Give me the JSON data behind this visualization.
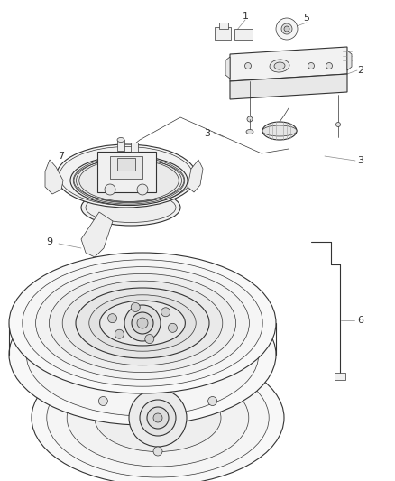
{
  "bg_color": "#ffffff",
  "line_color": "#333333",
  "label_color": "#333333",
  "figsize": [
    4.38,
    5.33
  ],
  "dpi": 100,
  "lw_main": 0.8,
  "lw_thin": 0.5,
  "lw_thick": 1.0
}
